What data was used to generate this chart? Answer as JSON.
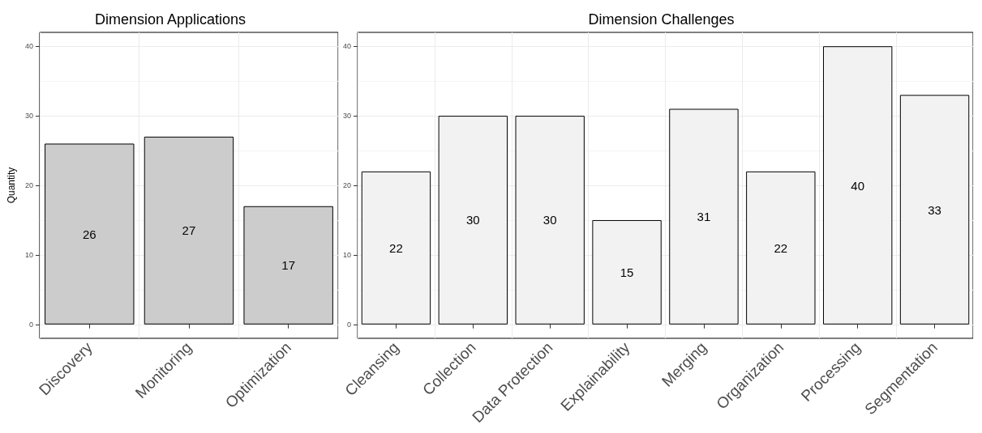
{
  "chart_data": [
    {
      "type": "bar",
      "title": "Dimension Applications",
      "ylabel": "Quantity",
      "categories": [
        "Discovery",
        "Monitoring",
        "Optimization"
      ],
      "series": [
        {
          "color": "#cccccc",
          "values": [
            26,
            27,
            17
          ]
        }
      ],
      "ylim": [
        -2,
        42
      ],
      "yticks": [
        0,
        10,
        20,
        30,
        40
      ],
      "grid": true,
      "data_labels": true
    },
    {
      "type": "bar",
      "title": "Dimension Challenges",
      "categories": [
        "Cleansing",
        "Collection",
        "Data Protection",
        "Explainability",
        "Merging",
        "Organization",
        "Processing",
        "Segmentation"
      ],
      "series": [
        {
          "color": "#f2f2f2",
          "values": [
            22,
            30,
            30,
            15,
            31,
            22,
            40,
            33
          ]
        }
      ],
      "ylim": [
        -2,
        42
      ],
      "yticks": [
        0,
        10,
        20,
        30,
        40
      ],
      "grid": true,
      "data_labels": true
    }
  ]
}
